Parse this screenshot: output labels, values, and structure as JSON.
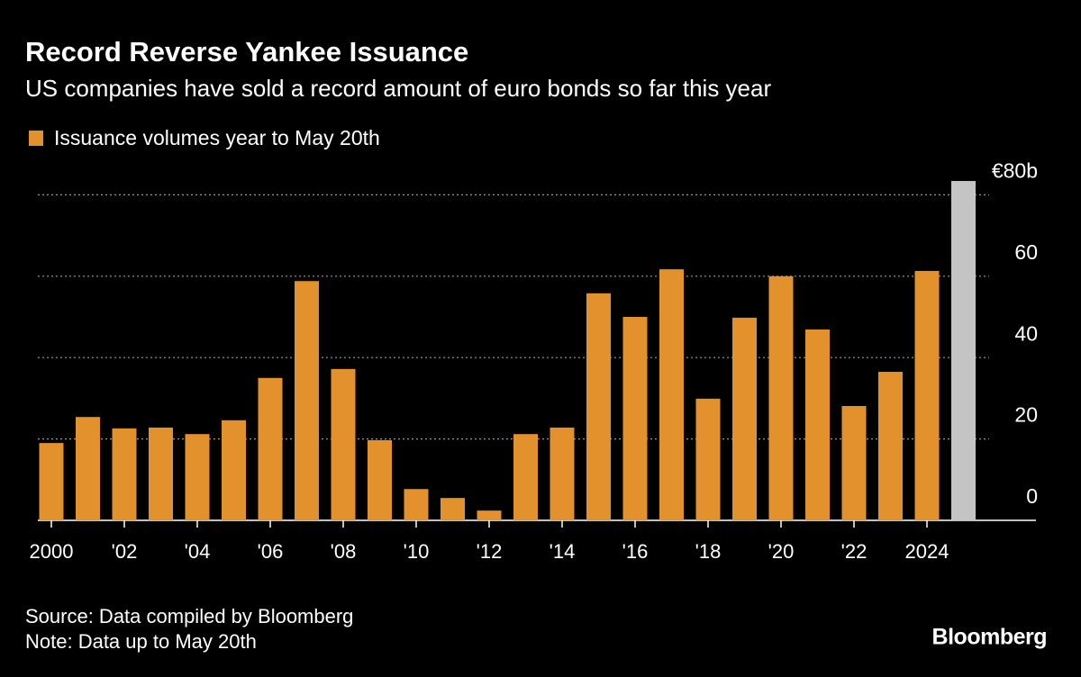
{
  "chart_data": {
    "type": "bar",
    "title": "Record Reverse Yankee Issuance",
    "subtitle": "US companies have sold a record amount of euro bonds so far this year",
    "categories": [
      "2000",
      null,
      "'02",
      null,
      "'04",
      null,
      "'06",
      null,
      "'08",
      null,
      "'10",
      null,
      "'12",
      null,
      "'14",
      null,
      "'16",
      null,
      "'18",
      null,
      "'20",
      null,
      "'22",
      null,
      "2024",
      null
    ],
    "series": [
      {
        "name": "Issuance volumes year to May 20th",
        "color": "#e2912c",
        "values": [
          19.0,
          25.4,
          22.6,
          22.8,
          21.2,
          24.6,
          35.0,
          58.8,
          37.2,
          19.7,
          7.7,
          5.5,
          2.4,
          21.2,
          22.8,
          55.8,
          50.0,
          61.7,
          29.9,
          49.8,
          60.0,
          46.9,
          28.1,
          36.5,
          61.3,
          83.4
        ],
        "colors": [
          "#e2912c",
          "#e2912c",
          "#e2912c",
          "#e2912c",
          "#e2912c",
          "#e2912c",
          "#e2912c",
          "#e2912c",
          "#e2912c",
          "#e2912c",
          "#e2912c",
          "#e2912c",
          "#e2912c",
          "#e2912c",
          "#e2912c",
          "#e2912c",
          "#e2912c",
          "#e2912c",
          "#e2912c",
          "#e2912c",
          "#e2912c",
          "#e2912c",
          "#e2912c",
          "#e2912c",
          "#e2912c",
          "#c4c4c4"
        ]
      }
    ],
    "ylim": [
      0,
      85
    ],
    "yticks": [
      0,
      20,
      40,
      60,
      {
        "value": 80,
        "label": "€80b"
      }
    ],
    "grid": true,
    "source": "Source: Data compiled by Bloomberg",
    "note": "Note: Data up to May 20th",
    "brand": "Bloomberg"
  }
}
